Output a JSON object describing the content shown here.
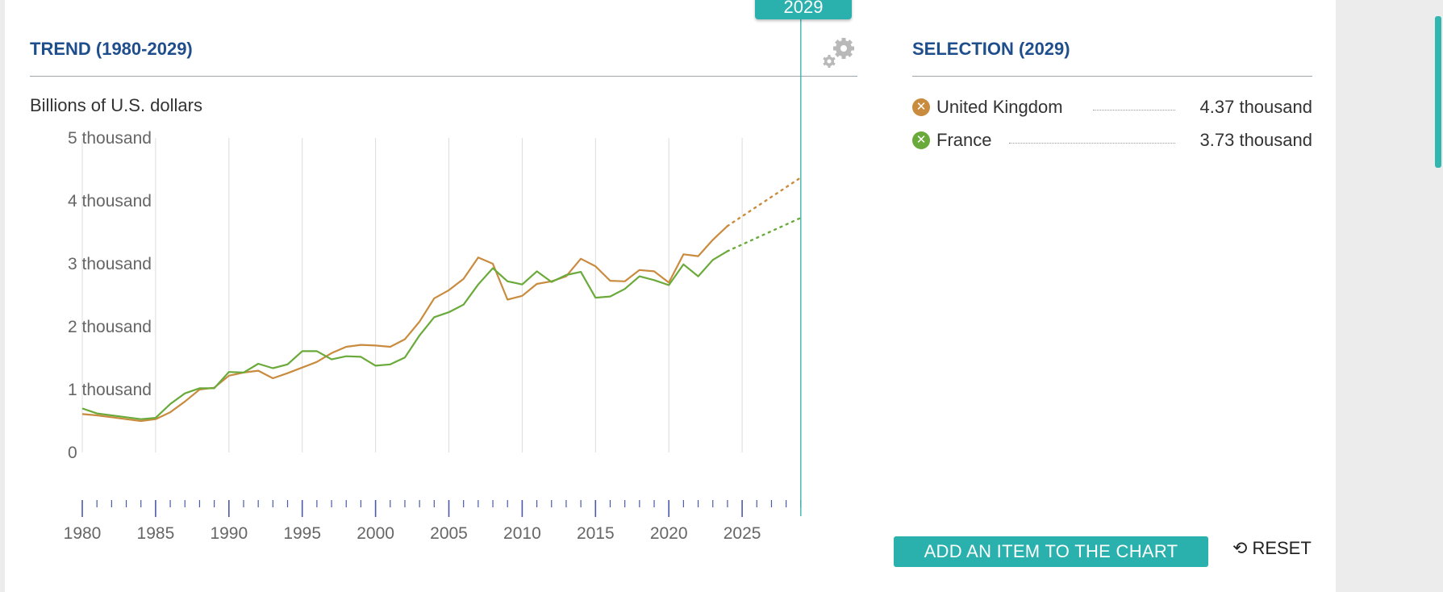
{
  "trend": {
    "title": "TREND (1980-2029)",
    "unit": "Billions of U.S. dollars"
  },
  "selection": {
    "title": "SELECTION (2029)",
    "items": [
      {
        "name": "United Kingdom",
        "value": "4.37 thousand",
        "color": "#c98b3e",
        "icon": "close-icon"
      },
      {
        "name": "France",
        "value": "3.73 thousand",
        "color": "#6aaa3a",
        "icon": "close-icon"
      }
    ]
  },
  "year_marker": {
    "label": "2029",
    "color": "#2ab0ad"
  },
  "buttons": {
    "add": "ADD AN ITEM TO THE CHART",
    "reset": "RESET"
  },
  "icons": {
    "settings": "gears-icon",
    "reset": "history-icon"
  },
  "chart_data": {
    "type": "line",
    "ylabel": "Billions of U.S. dollars",
    "ylim": [
      0,
      5000
    ],
    "xlim": [
      1980,
      2029
    ],
    "yticks": [
      {
        "v": 0,
        "label": "0"
      },
      {
        "v": 1000,
        "label": "1 thousand"
      },
      {
        "v": 2000,
        "label": "2 thousand"
      },
      {
        "v": 3000,
        "label": "3 thousand"
      },
      {
        "v": 4000,
        "label": "4 thousand"
      },
      {
        "v": 5000,
        "label": "5 thousand"
      }
    ],
    "xticks": [
      1980,
      1985,
      1990,
      1995,
      2000,
      2005,
      2010,
      2015,
      2020,
      2025
    ],
    "grid": true,
    "projection_start": 2024,
    "series": [
      {
        "name": "United Kingdom",
        "color": "#c98b3e",
        "x": [
          1980,
          1981,
          1982,
          1983,
          1984,
          1985,
          1986,
          1987,
          1988,
          1989,
          1990,
          1991,
          1992,
          1993,
          1994,
          1995,
          1996,
          1997,
          1998,
          1999,
          2000,
          2001,
          2002,
          2003,
          2004,
          2005,
          2006,
          2007,
          2008,
          2009,
          2010,
          2011,
          2012,
          2013,
          2014,
          2015,
          2016,
          2017,
          2018,
          2019,
          2020,
          2021,
          2022,
          2023,
          2024,
          2029
        ],
        "values": [
          610,
          590,
          560,
          530,
          500,
          530,
          640,
          810,
          1000,
          1030,
          1220,
          1270,
          1300,
          1180,
          1260,
          1350,
          1440,
          1580,
          1680,
          1710,
          1700,
          1680,
          1800,
          2080,
          2450,
          2580,
          2760,
          3100,
          3000,
          2430,
          2490,
          2680,
          2720,
          2800,
          3080,
          2960,
          2730,
          2720,
          2900,
          2880,
          2700,
          3150,
          3120,
          3380,
          3600,
          4370
        ]
      },
      {
        "name": "France",
        "color": "#6aaa3a",
        "x": [
          1980,
          1981,
          1982,
          1983,
          1984,
          1985,
          1986,
          1987,
          1988,
          1989,
          1990,
          1991,
          1992,
          1993,
          1994,
          1995,
          1996,
          1997,
          1998,
          1999,
          2000,
          2001,
          2002,
          2003,
          2004,
          2005,
          2006,
          2007,
          2008,
          2009,
          2010,
          2011,
          2012,
          2013,
          2014,
          2015,
          2016,
          2017,
          2018,
          2019,
          2020,
          2021,
          2022,
          2023,
          2024,
          2029
        ],
        "values": [
          700,
          620,
          590,
          560,
          530,
          550,
          770,
          940,
          1020,
          1020,
          1280,
          1270,
          1410,
          1340,
          1400,
          1610,
          1610,
          1480,
          1530,
          1520,
          1380,
          1400,
          1510,
          1860,
          2150,
          2230,
          2350,
          2670,
          2930,
          2720,
          2670,
          2880,
          2710,
          2820,
          2870,
          2460,
          2480,
          2600,
          2800,
          2740,
          2660,
          2990,
          2800,
          3060,
          3200,
          3730
        ]
      }
    ]
  }
}
